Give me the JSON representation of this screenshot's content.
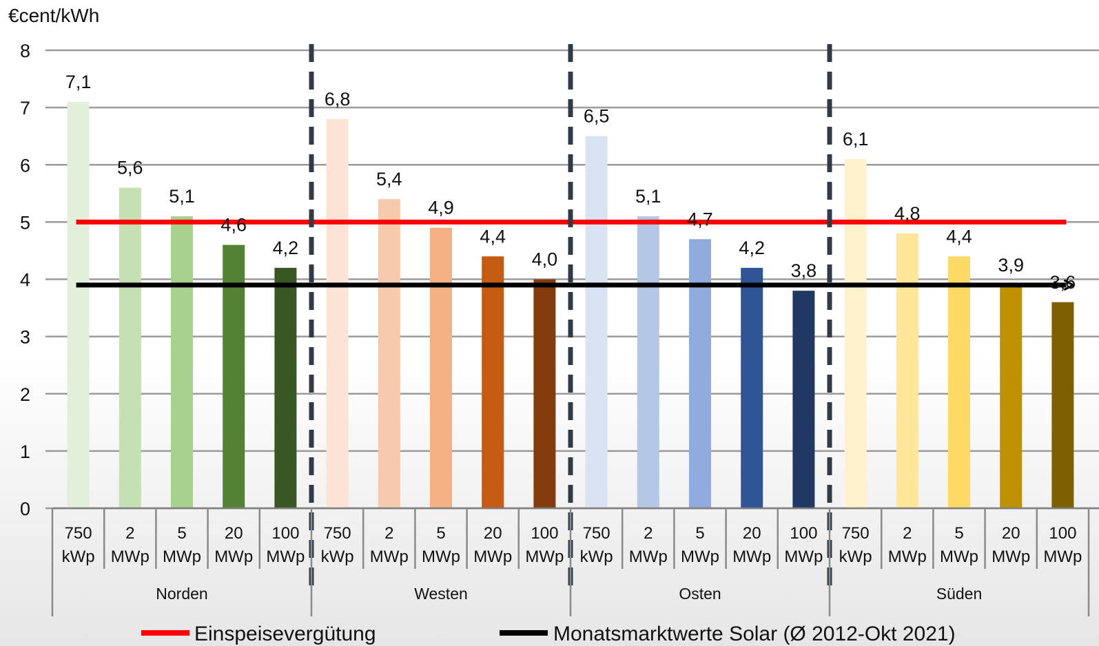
{
  "chart_data": {
    "type": "bar",
    "ylabel": "€cent/kWh",
    "ylim": [
      0,
      8
    ],
    "yticks": [
      "0",
      "1",
      "2",
      "3",
      "4",
      "5",
      "6",
      "7",
      "8"
    ],
    "grid": true,
    "groups": [
      {
        "name": "Norden",
        "categories": [
          [
            "750",
            "kWp"
          ],
          [
            "2",
            "MWp"
          ],
          [
            "5",
            "MWp"
          ],
          [
            "20",
            "MWp"
          ],
          [
            "100",
            "MWp"
          ]
        ],
        "values": [
          7.1,
          5.6,
          5.1,
          4.6,
          4.2
        ],
        "labels": [
          "7,1",
          "5,6",
          "5,1",
          "4,6",
          "4,2"
        ],
        "colors": [
          "#e2efd9",
          "#c5e0b3",
          "#a9d18e",
          "#548235",
          "#385723"
        ]
      },
      {
        "name": "Westen",
        "categories": [
          [
            "750",
            "kWp"
          ],
          [
            "2",
            "MWp"
          ],
          [
            "5",
            "MWp"
          ],
          [
            "20",
            "MWp"
          ],
          [
            "100",
            "MWp"
          ]
        ],
        "values": [
          6.8,
          5.4,
          4.9,
          4.4,
          4.0
        ],
        "labels": [
          "6,8",
          "5,4",
          "4,9",
          "4,4",
          "4,0"
        ],
        "colors": [
          "#fbe4d5",
          "#f7caac",
          "#f4b183",
          "#c55a11",
          "#843c0c"
        ]
      },
      {
        "name": "Osten",
        "categories": [
          [
            "750",
            "kWp"
          ],
          [
            "2",
            "MWp"
          ],
          [
            "5",
            "MWp"
          ],
          [
            "20",
            "MWp"
          ],
          [
            "100",
            "MWp"
          ]
        ],
        "values": [
          6.5,
          5.1,
          4.7,
          4.2,
          3.8
        ],
        "labels": [
          "6,5",
          "5,1",
          "4,7",
          "4,2",
          "3,8"
        ],
        "colors": [
          "#dae3f3",
          "#b4c7e7",
          "#8faadc",
          "#2f5597",
          "#1f3864"
        ]
      },
      {
        "name": "Süden",
        "categories": [
          [
            "750",
            "kWp"
          ],
          [
            "2",
            "MWp"
          ],
          [
            "5",
            "MWp"
          ],
          [
            "20",
            "MWp"
          ],
          [
            "100",
            "MWp"
          ]
        ],
        "values": [
          6.1,
          4.8,
          4.4,
          3.9,
          3.6
        ],
        "labels": [
          "6,1",
          "4,8",
          "4,4",
          "3,9",
          "3,6"
        ],
        "colors": [
          "#fff2cc",
          "#ffe699",
          "#ffd966",
          "#bf9000",
          "#7f6000"
        ]
      }
    ],
    "reference_lines": [
      {
        "name": "Einspeisevergütung",
        "value": 5.0,
        "color": "#ff0000"
      },
      {
        "name": "Monatsmarktwerte Solar (Ø 2012-Okt 2021)",
        "value": 3.9,
        "color": "#000000"
      }
    ],
    "legend_position": "bottom"
  }
}
